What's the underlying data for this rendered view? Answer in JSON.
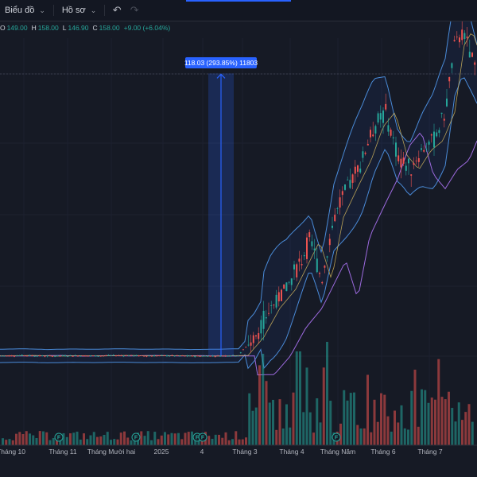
{
  "toolbar": {
    "chart_label": "Biểu đồ",
    "profile_label": "Hồ sơ",
    "undo_icon": "undo-icon",
    "redo_icon": "redo-icon",
    "accent_color": "#2962ff"
  },
  "ohlc": {
    "open_key": "O",
    "open_val": "149.00",
    "high_key": "H",
    "high_val": "158.00",
    "low_key": "L",
    "low_val": "146.90",
    "close_key": "C",
    "close_val": "158.00",
    "change": "+9.00 (+6.04%)"
  },
  "measure": {
    "label": "118.03 (293.85%) 11803",
    "color": "#2962ff"
  },
  "colors": {
    "background": "#161a25",
    "up": "#26a69a",
    "down": "#ef5350",
    "bb_band": "#4a8bd8",
    "basis": "#e0c060",
    "ma": "#9c6ade"
  },
  "time_axis": [
    "Tháng 10",
    "Tháng 11",
    "Tháng Mười hai",
    "2025",
    "4",
    "Tháng 3",
    "Tháng 4",
    "Tháng Năm",
    "Tháng 6",
    "Tháng 7"
  ],
  "events": [
    {
      "label": "F"
    },
    {
      "label": "F"
    },
    {
      "label": "F"
    },
    {
      "label": "F"
    },
    {
      "label": "F"
    }
  ],
  "chart_data": {
    "type": "candlestick",
    "price_points": [
      {
        "t": 0,
        "p": 40.1
      },
      {
        "t": 30,
        "p": 40.3
      },
      {
        "t": 60,
        "p": 40.0
      },
      {
        "t": 90,
        "p": 40.2
      },
      {
        "t": 120,
        "p": 40.1
      },
      {
        "t": 150,
        "p": 40.3
      },
      {
        "t": 180,
        "p": 40.1
      },
      {
        "t": 210,
        "p": 40.2
      },
      {
        "t": 240,
        "p": 40.0
      },
      {
        "t": 270,
        "p": 40.1
      },
      {
        "t": 300,
        "p": 40.3
      },
      {
        "t": 320,
        "p": 48
      },
      {
        "t": 340,
        "p": 60
      },
      {
        "t": 360,
        "p": 68
      },
      {
        "t": 375,
        "p": 78
      },
      {
        "t": 390,
        "p": 88
      },
      {
        "t": 405,
        "p": 72
      },
      {
        "t": 420,
        "p": 98
      },
      {
        "t": 440,
        "p": 112
      },
      {
        "t": 455,
        "p": 122
      },
      {
        "t": 470,
        "p": 136
      },
      {
        "t": 485,
        "p": 142
      },
      {
        "t": 500,
        "p": 124
      },
      {
        "t": 515,
        "p": 118
      },
      {
        "t": 530,
        "p": 126
      },
      {
        "t": 545,
        "p": 130
      },
      {
        "t": 560,
        "p": 142
      },
      {
        "t": 572,
        "p": 170
      },
      {
        "t": 582,
        "p": 176
      },
      {
        "t": 592,
        "p": 166
      },
      {
        "t": 600,
        "p": 158
      }
    ],
    "volume_bars": 140,
    "measure_base": 40.17,
    "measure_change": 118.03,
    "measure_pct": 293.85,
    "measure_ticks": 11803
  }
}
